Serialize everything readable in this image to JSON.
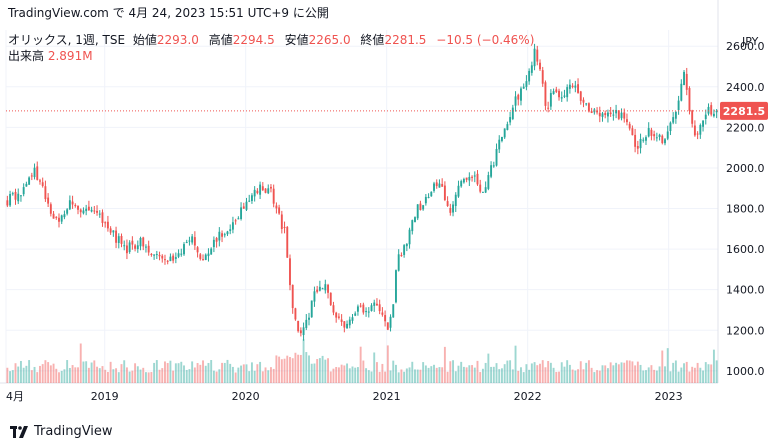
{
  "header": {
    "source_line": "TradingView.com で 4月 24, 2023 15:51 UTC+9 に公開"
  },
  "legend": {
    "symbol": "オリックス, 1週, TSE",
    "open_label": "始値",
    "open": "2293.0",
    "high_label": "高値",
    "high": "2294.5",
    "low_label": "安値",
    "low": "2265.0",
    "close_label": "終値",
    "close": "2281.5",
    "change": "−10.5 (−0.46%)",
    "volume_label": "出来高",
    "volume": "2.891M"
  },
  "footer": {
    "brand": "TradingView"
  },
  "colors": {
    "up": "#26a69a",
    "down": "#ef5350",
    "grid": "#f0f3fa",
    "text": "#131722"
  },
  "chart_data": {
    "type": "candlestick",
    "currency_label": "JPY",
    "ylim": [
      940,
      2680
    ],
    "y_ticks": [
      1000,
      1200,
      1400,
      1600,
      1800,
      2000,
      2200,
      2400,
      2600
    ],
    "x_tick_labels": [
      {
        "t": 0.0,
        "label": "4月"
      },
      {
        "t": 0.7,
        "label": "2019"
      },
      {
        "t": 1.7,
        "label": "2020"
      },
      {
        "t": 2.7,
        "label": "2021"
      },
      {
        "t": 3.7,
        "label": "2022"
      },
      {
        "t": 4.7,
        "label": "2023"
      }
    ],
    "time_span_years": 5.05,
    "current_price": 2281.5,
    "close_path": [
      [
        0.0,
        1840
      ],
      [
        0.1,
        1880
      ],
      [
        0.18,
        1990
      ],
      [
        0.22,
        1950
      ],
      [
        0.3,
        1790
      ],
      [
        0.38,
        1740
      ],
      [
        0.45,
        1840
      ],
      [
        0.55,
        1770
      ],
      [
        0.62,
        1800
      ],
      [
        0.72,
        1700
      ],
      [
        0.78,
        1650
      ],
      [
        0.85,
        1600
      ],
      [
        0.95,
        1640
      ],
      [
        1.05,
        1560
      ],
      [
        1.15,
        1540
      ],
      [
        1.25,
        1600
      ],
      [
        1.32,
        1650
      ],
      [
        1.4,
        1540
      ],
      [
        1.5,
        1660
      ],
      [
        1.6,
        1720
      ],
      [
        1.7,
        1820
      ],
      [
        1.8,
        1900
      ],
      [
        1.88,
        1880
      ],
      [
        1.92,
        1780
      ],
      [
        1.98,
        1680
      ],
      [
        2.02,
        1330
      ],
      [
        2.08,
        1160
      ],
      [
        2.14,
        1260
      ],
      [
        2.2,
        1400
      ],
      [
        2.26,
        1420
      ],
      [
        2.32,
        1300
      ],
      [
        2.4,
        1230
      ],
      [
        2.48,
        1300
      ],
      [
        2.56,
        1310
      ],
      [
        2.64,
        1340
      ],
      [
        2.7,
        1200
      ],
      [
        2.74,
        1300
      ],
      [
        2.78,
        1560
      ],
      [
        2.84,
        1640
      ],
      [
        2.92,
        1800
      ],
      [
        3.0,
        1860
      ],
      [
        3.08,
        1950
      ],
      [
        3.15,
        1760
      ],
      [
        3.22,
        1940
      ],
      [
        3.3,
        1980
      ],
      [
        3.38,
        1880
      ],
      [
        3.46,
        2020
      ],
      [
        3.54,
        2200
      ],
      [
        3.62,
        2340
      ],
      [
        3.7,
        2420
      ],
      [
        3.76,
        2580
      ],
      [
        3.8,
        2440
      ],
      [
        3.84,
        2270
      ],
      [
        3.88,
        2380
      ],
      [
        3.96,
        2360
      ],
      [
        4.04,
        2420
      ],
      [
        4.1,
        2320
      ],
      [
        4.2,
        2260
      ],
      [
        4.3,
        2290
      ],
      [
        4.4,
        2240
      ],
      [
        4.48,
        2100
      ],
      [
        4.56,
        2180
      ],
      [
        4.64,
        2140
      ],
      [
        4.7,
        2160
      ],
      [
        4.76,
        2300
      ],
      [
        4.82,
        2460
      ],
      [
        4.86,
        2240
      ],
      [
        4.9,
        2140
      ],
      [
        4.95,
        2210
      ],
      [
        5.0,
        2290
      ],
      [
        5.05,
        2281.5
      ]
    ],
    "volume_scale": {
      "min": 0,
      "max": 1.0,
      "note": "relative volume"
    }
  }
}
